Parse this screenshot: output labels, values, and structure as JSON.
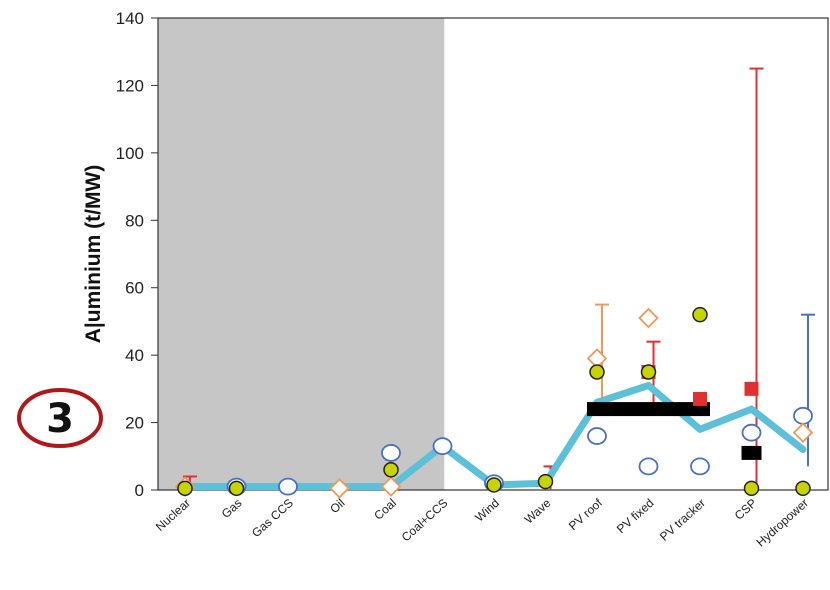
{
  "chart_data": {
    "type": "scatter",
    "title": "",
    "ylabel": "A|uminium (t/MW)",
    "xlabel": "",
    "ylim": [
      0,
      140
    ],
    "yticks": [
      0,
      20,
      40,
      60,
      80,
      100,
      120,
      140
    ],
    "categories": [
      "Nuclear",
      "Gas",
      "Gas CCS",
      "Oil",
      "Coal",
      "Coal+CCS",
      "Wind",
      "Wave",
      "PV roof",
      "PV fixed",
      "PV tracker",
      "CSP",
      "Hydropower"
    ],
    "shaded_region": {
      "from_category": "Nuclear",
      "to_category": "Coal+CCS",
      "color": "#c6c6c6"
    },
    "badge": "3",
    "series": [
      {
        "marker": "thick-line",
        "color": "#5bc0d8",
        "values": [
          1,
          1,
          1,
          1,
          1,
          13,
          1.5,
          2,
          26,
          31,
          18,
          24,
          12
        ]
      },
      {
        "marker": "open-circle",
        "color": "#4a6fc4",
        "values": [
          null,
          null,
          null,
          null,
          null,
          null,
          2,
          null,
          16,
          7,
          7,
          17,
          null
        ],
        "extra": [
          {
            "category": "Gas",
            "y": 1
          },
          {
            "category": "Gas CCS",
            "y": 1
          },
          {
            "category": "Coal",
            "y": 11
          },
          {
            "category": "Coal+CCS",
            "y": 13
          },
          {
            "category": "Hydropower",
            "y": 22
          }
        ]
      },
      {
        "marker": "open-diamond",
        "color": "#f09a5a",
        "values": [
          1,
          null,
          null,
          0.5,
          1,
          null,
          null,
          null,
          39,
          51,
          null,
          null,
          17
        ]
      },
      {
        "marker": "filled-circle",
        "color": "#c8d400",
        "values": [
          0.5,
          0.5,
          null,
          null,
          6,
          null,
          1.5,
          2.5,
          35,
          35,
          52,
          0.5,
          0.5
        ]
      },
      {
        "marker": "red-square",
        "color": "#e03030",
        "values": [
          null,
          null,
          null,
          null,
          null,
          null,
          null,
          null,
          null,
          35,
          27,
          30,
          null
        ]
      },
      {
        "marker": "black-bar",
        "color": "#000000",
        "bars": [
          {
            "from_category": "PV roof",
            "to_category": "PV tracker",
            "y": 24
          },
          {
            "from_category": "CSP",
            "to_category": "CSP",
            "y": 11
          }
        ]
      }
    ],
    "error_bars": [
      {
        "category": "Nuclear",
        "low": 0,
        "high": 4,
        "color": "#e03030"
      },
      {
        "category": "Wave",
        "low": 0,
        "high": 7,
        "color": "#e03030"
      },
      {
        "category": "PV roof",
        "low": 26,
        "high": 55,
        "color": "#f09a5a"
      },
      {
        "category": "PV fixed",
        "low": 22,
        "high": 44,
        "color": "#e03030"
      },
      {
        "category": "CSP",
        "low": 0,
        "high": 125,
        "color": "#e03030"
      },
      {
        "category": "Hydropower",
        "low": 7,
        "high": 52,
        "color": "#4a6fc4"
      }
    ]
  }
}
